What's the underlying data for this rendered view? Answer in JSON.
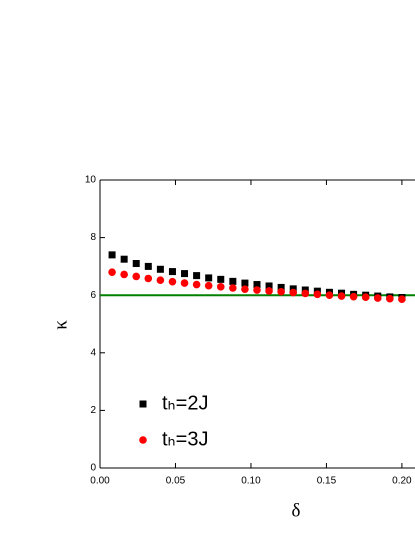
{
  "chart_data": {
    "type": "scatter",
    "x_label": "δ",
    "y_label": "κ",
    "xlim": [
      0,
      0.21
    ],
    "ylim": [
      0,
      10
    ],
    "xticks": [
      {
        "value": 0,
        "label": "0.00"
      },
      {
        "value": 0.05,
        "label": "0.05"
      },
      {
        "value": 0.1,
        "label": "0.10"
      },
      {
        "value": 0.15,
        "label": "0.15"
      },
      {
        "value": 0.2,
        "label": "0.20"
      }
    ],
    "yticks": [
      0,
      2,
      4,
      6,
      8,
      10
    ],
    "x": [
      0.008,
      0.016,
      0.024,
      0.032,
      0.04,
      0.048,
      0.056,
      0.064,
      0.072,
      0.08,
      0.088,
      0.096,
      0.104,
      0.112,
      0.12,
      0.128,
      0.136,
      0.144,
      0.152,
      0.16,
      0.168,
      0.176,
      0.184,
      0.192,
      0.2
    ],
    "series": [
      {
        "name": "tₕ=2J",
        "color": "#000000",
        "marker": "square",
        "values": [
          7.4,
          7.25,
          7.1,
          7.0,
          6.9,
          6.82,
          6.75,
          6.68,
          6.6,
          6.55,
          6.48,
          6.42,
          6.37,
          6.32,
          6.27,
          6.22,
          6.18,
          6.14,
          6.1,
          6.07,
          6.03,
          6.0,
          5.97,
          5.94,
          5.92
        ]
      },
      {
        "name": "tₕ=3J",
        "color": "#ff0000",
        "marker": "circle",
        "values": [
          6.8,
          6.72,
          6.65,
          6.58,
          6.52,
          6.47,
          6.42,
          6.37,
          6.33,
          6.29,
          6.25,
          6.21,
          6.18,
          6.15,
          6.12,
          6.09,
          6.06,
          6.03,
          6.0,
          5.97,
          5.95,
          5.93,
          5.9,
          5.88,
          5.86
        ]
      }
    ],
    "reference_line": {
      "value": 6,
      "color": "#008000"
    }
  }
}
